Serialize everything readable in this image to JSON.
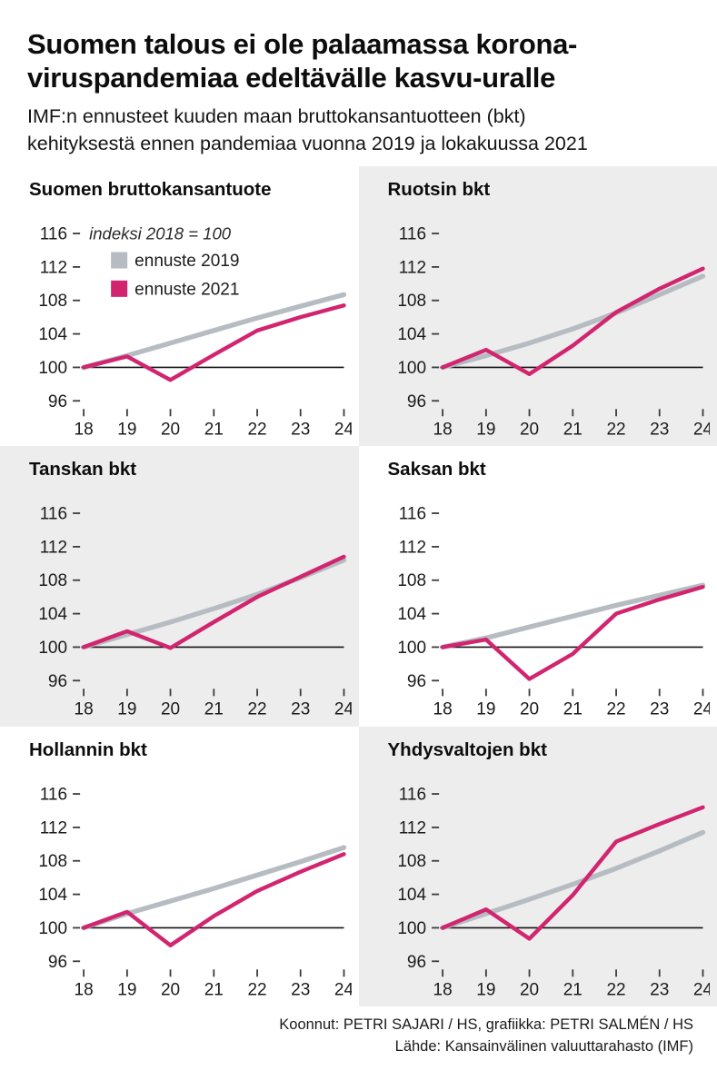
{
  "header": {
    "title_lines": [
      "Suomen talous ei ole palaamassa korona-",
      "viruspandemiaa edeltävälle kasvu-uralle"
    ],
    "subtitle_lines": [
      "IMF:n ennusteet kuuden maan bruttokansantuotteen (bkt)",
      "kehityksestä ennen pandemiaa vuonna 2019 ja lokakuussa 2021"
    ]
  },
  "legend": {
    "note": "indeksi 2018 = 100",
    "items": [
      {
        "label": "ennuste 2019",
        "color": "#b6bcc2"
      },
      {
        "label": "ennuste 2021",
        "color": "#d1256f"
      }
    ]
  },
  "axes": {
    "x_ticks": [
      "18",
      "19",
      "20",
      "21",
      "22",
      "23",
      "24"
    ],
    "y_ticks": [
      116,
      112,
      108,
      104,
      100,
      96
    ],
    "baseline_value": 100,
    "ylim": [
      95,
      117
    ]
  },
  "chart_data": [
    {
      "type": "line",
      "title": "Suomen bruttokansantuote",
      "x": [
        2018,
        2019,
        2020,
        2021,
        2022,
        2023,
        2024
      ],
      "ylim": [
        95,
        117
      ],
      "show_legend": true,
      "panel_bg": "#ffffff",
      "series": [
        {
          "name": "ennuste 2019",
          "color": "#b6bcc2",
          "values": [
            100,
            101.4,
            102.9,
            104.4,
            105.9,
            107.3,
            108.7
          ]
        },
        {
          "name": "ennuste 2021",
          "color": "#d1256f",
          "values": [
            100,
            101.3,
            98.5,
            101.5,
            104.4,
            106.0,
            107.4
          ]
        }
      ]
    },
    {
      "type": "line",
      "title": "Ruotsin bkt",
      "x": [
        2018,
        2019,
        2020,
        2021,
        2022,
        2023,
        2024
      ],
      "ylim": [
        95,
        117
      ],
      "show_legend": false,
      "panel_bg": "#ededed",
      "series": [
        {
          "name": "ennuste 2019",
          "color": "#b6bcc2",
          "values": [
            100,
            101.4,
            102.9,
            104.6,
            106.5,
            108.7,
            110.9
          ]
        },
        {
          "name": "ennuste 2021",
          "color": "#d1256f",
          "values": [
            100,
            102.1,
            99.2,
            102.6,
            106.6,
            109.4,
            111.8
          ]
        }
      ]
    },
    {
      "type": "line",
      "title": "Tanskan bkt",
      "x": [
        2018,
        2019,
        2020,
        2021,
        2022,
        2023,
        2024
      ],
      "ylim": [
        95,
        117
      ],
      "show_legend": false,
      "panel_bg": "#ededed",
      "series": [
        {
          "name": "ennuste 2019",
          "color": "#b6bcc2",
          "values": [
            100,
            101.5,
            103.0,
            104.6,
            106.3,
            108.3,
            110.4
          ]
        },
        {
          "name": "ennuste 2021",
          "color": "#d1256f",
          "values": [
            100,
            101.9,
            99.9,
            103.0,
            106.0,
            108.4,
            110.8
          ]
        }
      ]
    },
    {
      "type": "line",
      "title": "Saksan bkt",
      "x": [
        2018,
        2019,
        2020,
        2021,
        2022,
        2023,
        2024
      ],
      "ylim": [
        95,
        117
      ],
      "show_legend": false,
      "panel_bg": "#ffffff",
      "series": [
        {
          "name": "ennuste 2019",
          "color": "#b6bcc2",
          "values": [
            100,
            101.1,
            102.4,
            103.7,
            105.0,
            106.2,
            107.4
          ]
        },
        {
          "name": "ennuste 2021",
          "color": "#d1256f",
          "values": [
            100,
            100.9,
            96.2,
            99.2,
            104.0,
            105.7,
            107.2
          ]
        }
      ]
    },
    {
      "type": "line",
      "title": "Hollannin bkt",
      "x": [
        2018,
        2019,
        2020,
        2021,
        2022,
        2023,
        2024
      ],
      "ylim": [
        95,
        117
      ],
      "show_legend": false,
      "panel_bg": "#ffffff",
      "series": [
        {
          "name": "ennuste 2019",
          "color": "#b6bcc2",
          "values": [
            100,
            101.7,
            103.2,
            104.7,
            106.3,
            107.9,
            109.6
          ]
        },
        {
          "name": "ennuste 2021",
          "color": "#d1256f",
          "values": [
            100,
            101.9,
            97.9,
            101.4,
            104.4,
            106.7,
            108.8
          ]
        }
      ]
    },
    {
      "type": "line",
      "title": "Yhdysvaltojen bkt",
      "x": [
        2018,
        2019,
        2020,
        2021,
        2022,
        2023,
        2024
      ],
      "ylim": [
        95,
        117
      ],
      "show_legend": false,
      "panel_bg": "#ededed",
      "series": [
        {
          "name": "ennuste 2019",
          "color": "#b6bcc2",
          "values": [
            100,
            101.7,
            103.4,
            105.2,
            107.1,
            109.2,
            111.4
          ]
        },
        {
          "name": "ennuste 2021",
          "color": "#d1256f",
          "values": [
            100,
            102.2,
            98.7,
            103.9,
            110.3,
            112.4,
            114.4
          ]
        }
      ]
    }
  ],
  "footer": {
    "credit": "Koonnut: PETRI SAJARI / HS, grafiikka: PETRI SALMÉN / HS",
    "source": "Lähde: Kansainvälinen valuuttarahasto (IMF)"
  }
}
